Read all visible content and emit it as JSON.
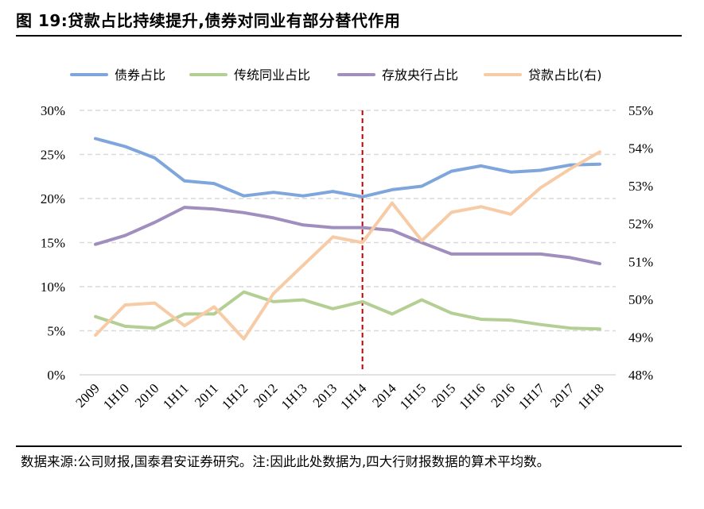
{
  "header": {
    "title": "图 19:贷款占比持续提升,债券对同业有部分替代作用"
  },
  "footer": {
    "source": "数据来源:公司财报,国泰君安证券研究。注:因此此处数据为,四大行财报数据的算术平均数。"
  },
  "chart_data": {
    "type": "line",
    "categories": [
      "2009",
      "1H10",
      "2010",
      "1H11",
      "2011",
      "1H12",
      "2012",
      "1H13",
      "2013",
      "1H14",
      "2014",
      "1H15",
      "2015",
      "1H16",
      "2016",
      "1H17",
      "2017",
      "1H18"
    ],
    "y_left": {
      "range": [
        0,
        30
      ],
      "ticks": [
        "0%",
        "5%",
        "10%",
        "15%",
        "20%",
        "25%",
        "30%"
      ]
    },
    "y_right": {
      "range": [
        48,
        55
      ],
      "ticks": [
        "48%",
        "49%",
        "50%",
        "51%",
        "52%",
        "53%",
        "54%",
        "55%"
      ]
    },
    "grid": "horizontal dashed",
    "legend_position": "top",
    "reference_line": {
      "category": "1H14",
      "color": "#c00000"
    },
    "series": [
      {
        "name": "债券占比",
        "axis": "left",
        "color": "#7ea6dc",
        "values": [
          26.8,
          25.9,
          24.6,
          22.0,
          21.7,
          20.3,
          20.7,
          20.3,
          20.8,
          20.2,
          21.0,
          21.4,
          23.1,
          23.7,
          23.0,
          23.2,
          23.8,
          23.9
        ]
      },
      {
        "name": "传统同业占比",
        "axis": "left",
        "color": "#b3cf93",
        "values": [
          6.6,
          5.5,
          5.3,
          6.9,
          6.9,
          9.4,
          8.3,
          8.5,
          7.5,
          8.3,
          6.9,
          8.5,
          7.0,
          6.3,
          6.2,
          5.7,
          5.3,
          5.2
        ]
      },
      {
        "name": "存放央行占比",
        "axis": "left",
        "color": "#a08fbe",
        "values": [
          14.8,
          15.8,
          17.3,
          19.0,
          18.8,
          18.4,
          17.8,
          17.0,
          16.7,
          16.7,
          16.4,
          15.0,
          13.7,
          13.7,
          13.7,
          13.7,
          13.3,
          12.6
        ]
      },
      {
        "name": "贷款占比(右)",
        "axis": "right",
        "color": "#f7cba5",
        "values": [
          49.05,
          49.85,
          49.9,
          49.3,
          49.8,
          48.95,
          50.15,
          50.9,
          51.65,
          51.5,
          52.55,
          51.55,
          52.3,
          52.45,
          52.25,
          52.95,
          53.45,
          53.9
        ]
      }
    ]
  }
}
